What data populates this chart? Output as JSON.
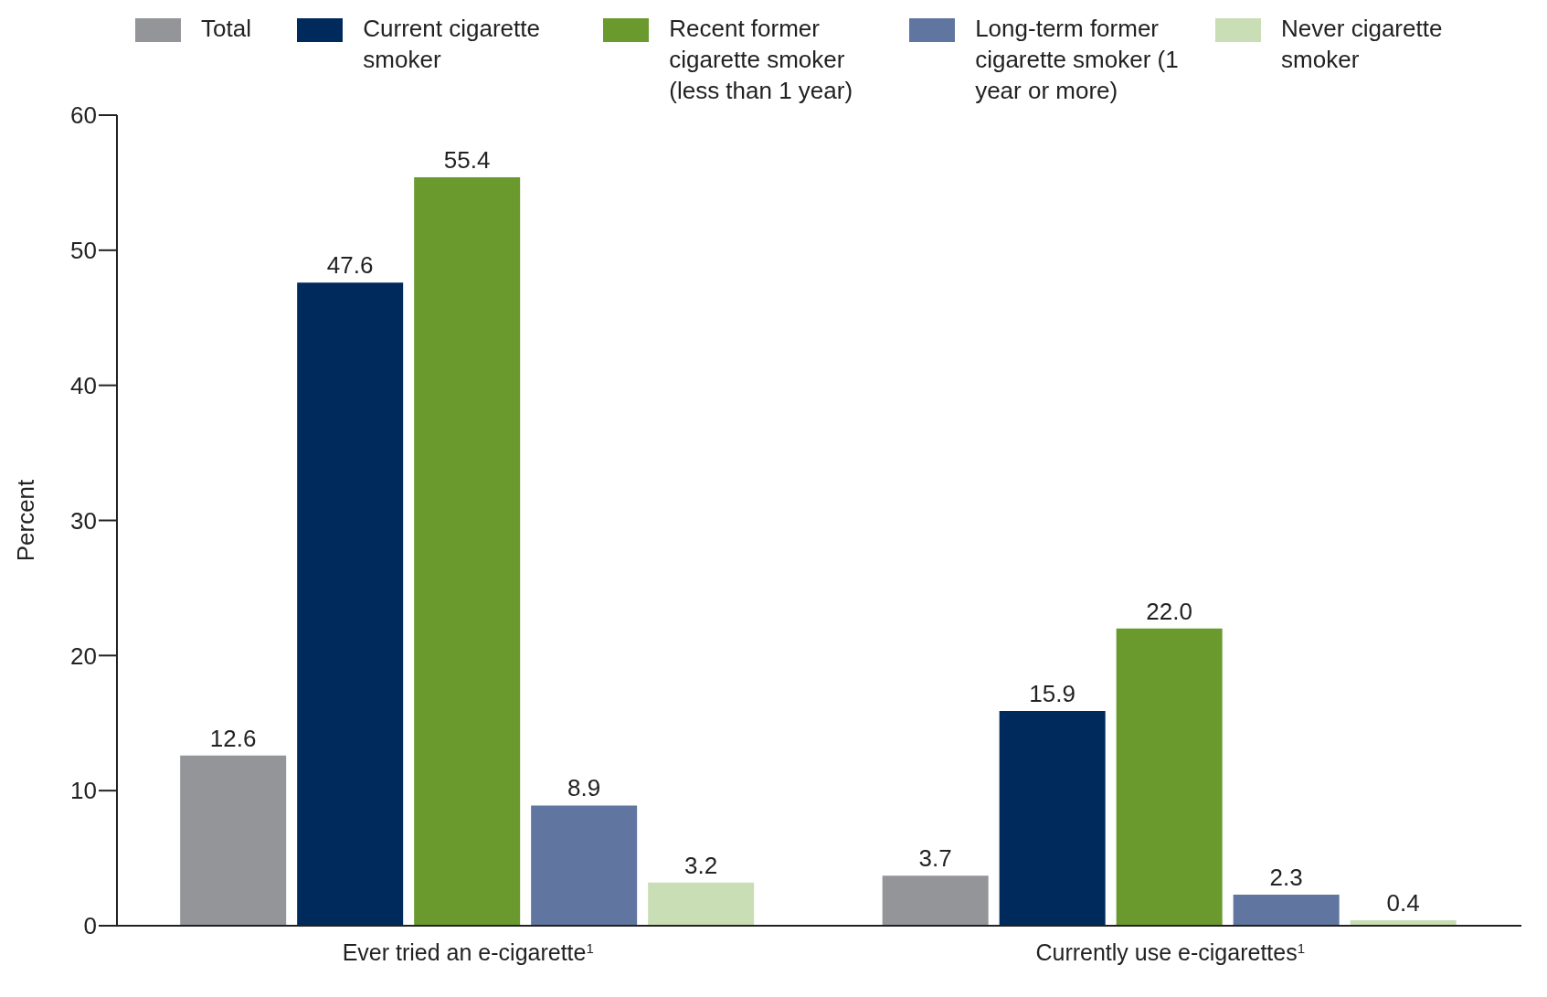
{
  "chart_data": {
    "type": "bar",
    "ylabel": "Percent",
    "categories": [
      "Ever tried an e-cigarette$^{1}$",
      "Currently use e-cigarettes$^{1}$"
    ],
    "series": [
      {
        "name": "Total",
        "color": "#939598",
        "values": [
          12.6,
          3.7
        ],
        "value_labels": [
          "12.6",
          "3.7"
        ]
      },
      {
        "name": "Current cigarette smoker",
        "color": "#002a5c",
        "values": [
          47.6,
          15.9
        ],
        "value_labels": [
          "47.6",
          "15.9"
        ]
      },
      {
        "name": "Recent former cigarette smoker (less than 1 year)",
        "color": "#6a9a2e",
        "values": [
          55.4,
          22.0
        ],
        "value_labels": [
          "55.4",
          "22.0"
        ]
      },
      {
        "name": "Long-term former cigarette smoker (1 year or more)",
        "color": "#60759f",
        "values": [
          8.9,
          2.3
        ],
        "value_labels": [
          "8.9",
          "2.3"
        ]
      },
      {
        "name": "Never cigarette smoker",
        "color": "#c9deb4",
        "values": [
          3.2,
          0.4
        ],
        "value_labels": [
          "3.2",
          "0.4"
        ]
      }
    ],
    "ylim": [
      0,
      60
    ],
    "yticks": [
      0,
      10,
      20,
      30,
      40,
      50,
      60
    ],
    "grid": false,
    "legend": "top"
  }
}
